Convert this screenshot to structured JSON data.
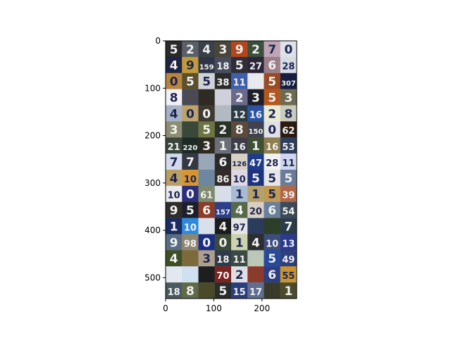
{
  "image": {
    "description_type": "grid-of-street-view-house-number-digit-crops",
    "rows": 16,
    "cols": 8,
    "pixel_extent": {
      "width": 272,
      "height": 544
    },
    "axis_color": "#000000"
  },
  "axes": {
    "x_ticks": [
      {
        "value": 0,
        "label": "0"
      },
      {
        "value": 100,
        "label": "100"
      },
      {
        "value": 200,
        "label": "200"
      }
    ],
    "y_ticks": [
      {
        "value": 0,
        "label": "0"
      },
      {
        "value": 100,
        "label": "100"
      },
      {
        "value": 200,
        "label": "200"
      },
      {
        "value": 300,
        "label": "300"
      },
      {
        "value": 400,
        "label": "400"
      },
      {
        "value": 500,
        "label": "500"
      }
    ]
  },
  "tiles": [
    [
      "5",
      "2",
      "4",
      "3",
      "9",
      "2",
      "7",
      "0"
    ],
    [
      "4",
      "9",
      "159",
      "18",
      "5",
      "27",
      "6",
      "28"
    ],
    [
      "0",
      "5",
      "5",
      "38",
      "11",
      "",
      "5",
      "307"
    ],
    [
      "8",
      "",
      "",
      "",
      "2",
      "3",
      "5",
      "3"
    ],
    [
      "4",
      "0",
      "0",
      "",
      "12",
      "16",
      "2",
      "8"
    ],
    [
      "3",
      "",
      "5",
      "2",
      "8",
      "150",
      "0",
      "62"
    ],
    [
      "21",
      "220",
      "3",
      "1",
      "16",
      "1",
      "16",
      "53"
    ],
    [
      "7",
      "7",
      "",
      "6",
      "126",
      "47",
      "28",
      "11"
    ],
    [
      "4",
      "10",
      "",
      "86",
      "10",
      "5",
      "5",
      "5"
    ],
    [
      "10",
      "0",
      "61",
      "",
      "1",
      "1",
      "5",
      "39"
    ],
    [
      "9",
      "5",
      "6",
      "157",
      "4",
      "20",
      "6",
      "54"
    ],
    [
      "1",
      "10",
      "",
      "4",
      "97",
      "",
      "",
      "7"
    ],
    [
      "9",
      "98",
      "0",
      "0",
      "1",
      "4",
      "10",
      "13"
    ],
    [
      "4",
      "",
      "3",
      "18",
      "11",
      "",
      "5",
      "49"
    ],
    [
      "",
      "",
      "",
      "70",
      "2",
      "",
      "6",
      "55"
    ],
    [
      "18",
      "8",
      "",
      "5",
      "15",
      "17",
      "",
      "1"
    ]
  ],
  "tile_colors": [
    [
      "#2b2b2b",
      "#5a5f68",
      "#3a3f48",
      "#4a4538",
      "#b2461c",
      "#3a4f3c",
      "#bfa4b6",
      "#dfe2e8"
    ],
    [
      "#1f2440",
      "#c29a3c",
      "#2f3544",
      "#474d5e",
      "#2e2e38",
      "#2b2438",
      "#9c7f89",
      "#d8dbe4"
    ],
    [
      "#b8853f",
      "#5b4f2c",
      "#cfd3d8",
      "#2b2b2b",
      "#3f5fa8",
      "#e9e9ee",
      "#9a4a24",
      "#181e42"
    ],
    [
      "#f0f0f6",
      "#4a4a55",
      "#2f2a24",
      "#cfd0dc",
      "#6b6a8c",
      "#1e1e28",
      "#b3561f",
      "#6d6c50"
    ],
    [
      "#a7b1c6",
      "#bba36d",
      "#3f3a30",
      "#b2b9c1",
      "#2a3a44",
      "#2b53a0",
      "#e9ecd4",
      "#c9cbbd"
    ],
    [
      "#8d8d76",
      "#3a4739",
      "#6c7442",
      "#2a3228",
      "#5a4b3a",
      "#41414d",
      "#e0e0e8",
      "#2b1c12"
    ],
    [
      "#39453a",
      "#1f2a26",
      "#2e2a22",
      "#6a6e76",
      "#3c3c4a",
      "#3e4f34",
      "#8f7e4e",
      "#2e3f5e"
    ],
    [
      "#d4d8ec",
      "#333842",
      "#9aa7b6",
      "#2a2a2a",
      "#d7d0c4",
      "#1f3c8a",
      "#f2f2f2",
      "#cfd7f0"
    ],
    [
      "#b99f64",
      "#d79435",
      "#6d879f",
      "#332b28",
      "#ded8e4",
      "#1e3380",
      "#e6e6ea",
      "#6b7c9a"
    ],
    [
      "#e9e9ef",
      "#2b2f7a",
      "#7d8a6e",
      "#d7dee8",
      "#a9bad4",
      "#b4a16c",
      "#c09954",
      "#b0674a"
    ],
    [
      "#2f2d2a",
      "#1b1f2a",
      "#8b3b26",
      "#2e3f8a",
      "#566a49",
      "#d9cec6",
      "#6a7f9a",
      "#3c4b57"
    ],
    [
      "#1a2b62",
      "#2f8bda",
      "#d8e1ea",
      "#1c1c1c",
      "#e5e5e8",
      "#2b3b5c",
      "#2c3e28",
      "#2a3c48"
    ],
    [
      "#5a6c82",
      "#8f8670",
      "#1b2e84",
      "#3c4b38",
      "#cbd3ae",
      "#2c2d30",
      "#3d4c7d",
      "#2b3a8c"
    ],
    [
      "#3e4f26",
      "#7c6a3c",
      "#ad9f8e",
      "#2f3b48",
      "#3c4a45",
      "#bcc7b7",
      "#284a9a",
      "#2f3f7c"
    ],
    [
      "#e2e8f0",
      "#cfe0f0",
      "#1e1e1e",
      "#7a2520",
      "#dfdfe3",
      "#8b3b2c",
      "#2b3d84",
      "#c9942f"
    ],
    [
      "#4a5a60",
      "#5f6a48",
      "#4a4a2b",
      "#2b2b2b",
      "#2a3e7c",
      "#5f6f8f",
      "#3a3a2a",
      "#4b4b2c"
    ]
  ]
}
